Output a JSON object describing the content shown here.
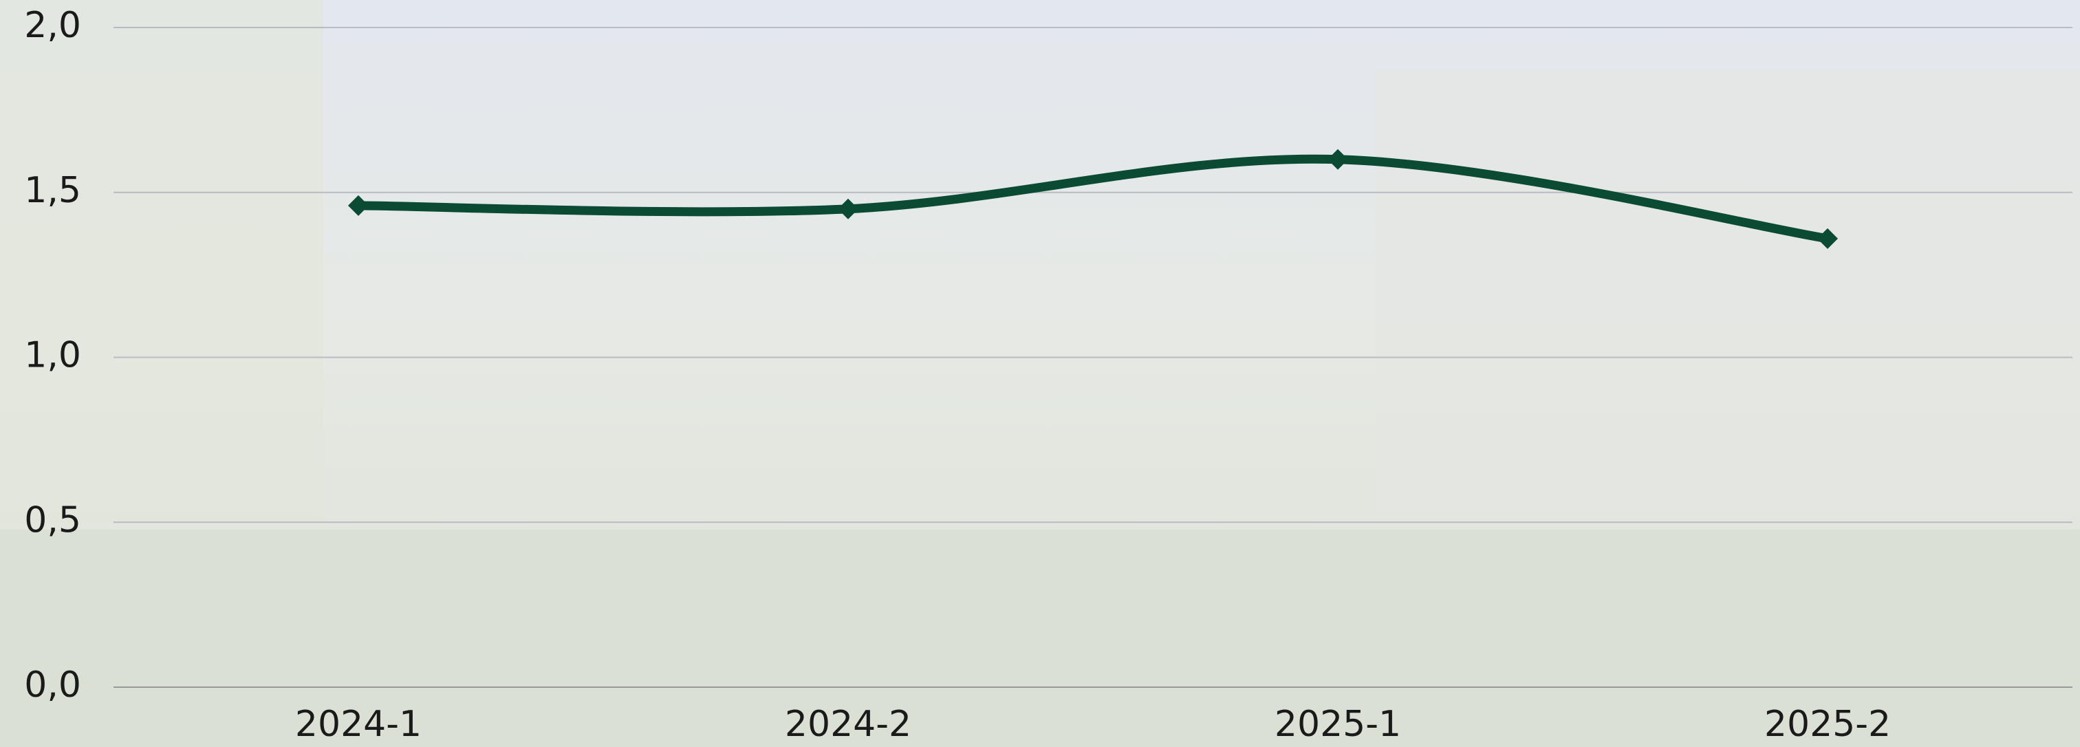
{
  "chart_data": {
    "type": "line",
    "categories": [
      "2024-1",
      "2024-2",
      "2025-1",
      "2025-2"
    ],
    "values": [
      1.46,
      1.45,
      1.6,
      1.36
    ],
    "color": "#0b4a33",
    "ylim": [
      0,
      2
    ],
    "yticks": [
      {
        "value": 0,
        "label": "0,0"
      },
      {
        "value": 0.5,
        "label": "0,5"
      },
      {
        "value": 1,
        "label": "1,0"
      },
      {
        "value": 1.5,
        "label": "1,5"
      },
      {
        "value": 2,
        "label": "2,0"
      }
    ],
    "grid": true
  }
}
